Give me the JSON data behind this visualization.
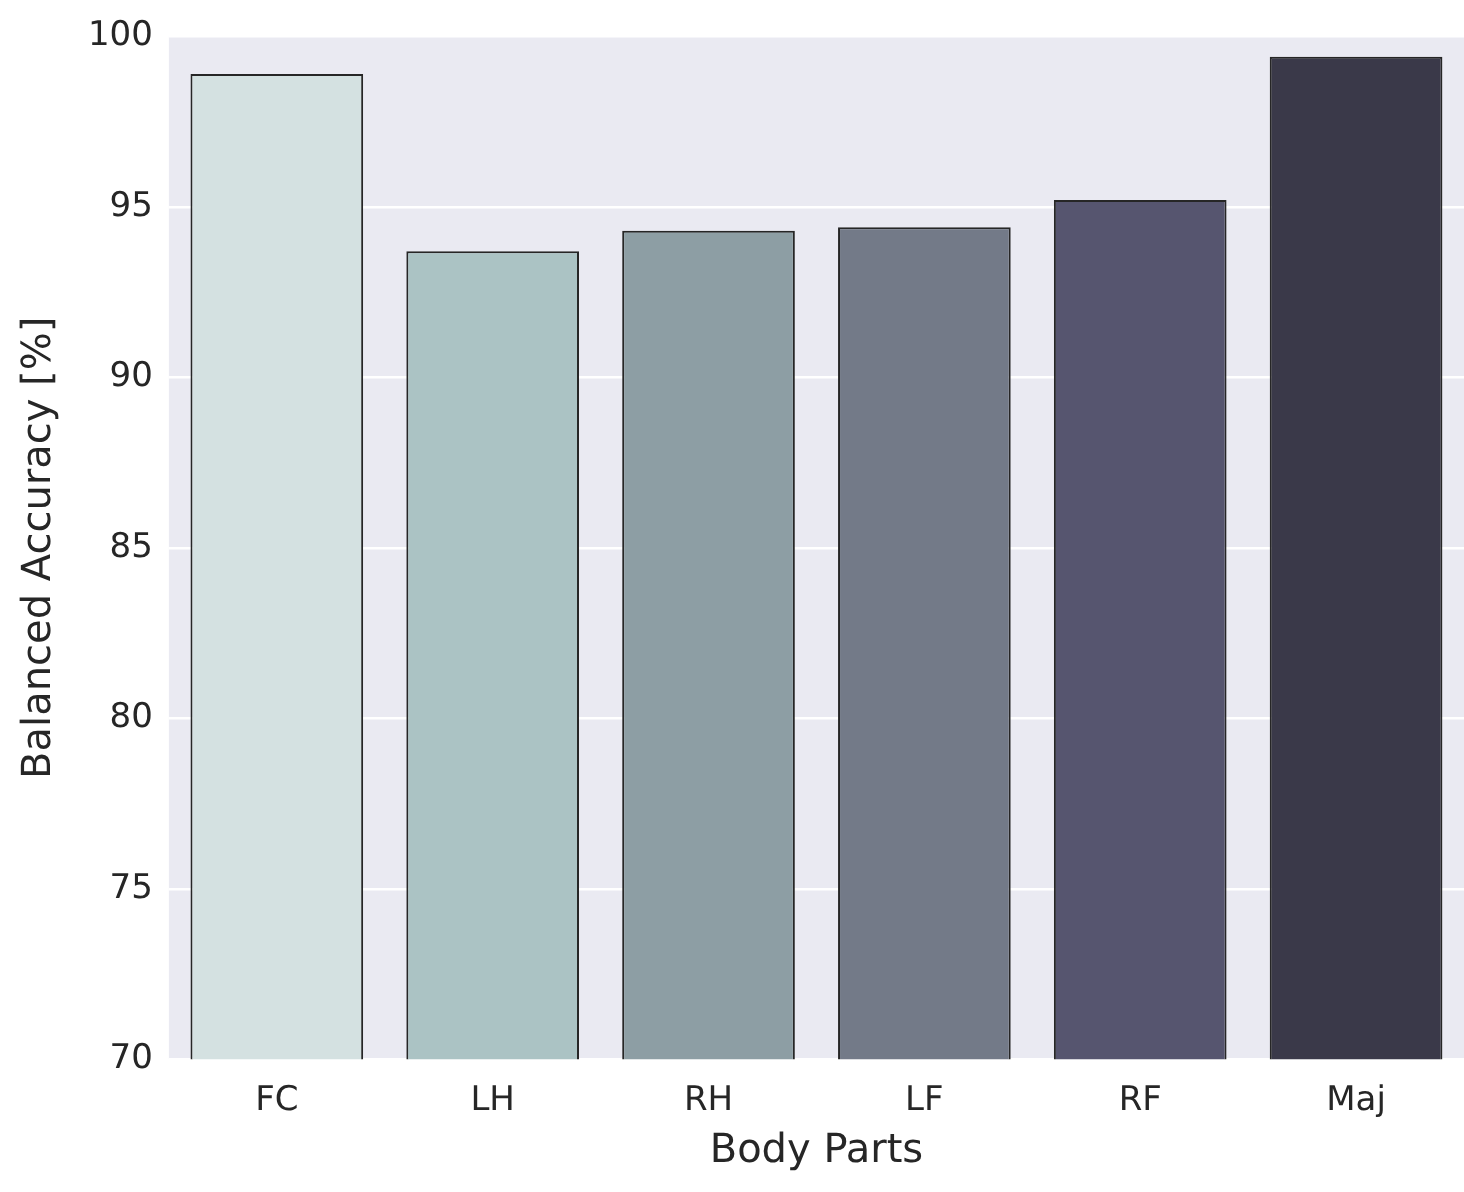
{
  "chart_data": {
    "type": "bar",
    "xlabel": "Body Parts",
    "ylabel": "Balanced Accuracy [%]",
    "categories": [
      "FC",
      "LH",
      "RH",
      "LF",
      "RF",
      "Maj"
    ],
    "values": [
      98.9,
      93.7,
      94.3,
      94.4,
      95.2,
      99.4
    ],
    "colors": [
      "#d4e1e1",
      "#abc3c4",
      "#8d9ea4",
      "#737a88",
      "#56556f",
      "#3a3949"
    ],
    "ylim": [
      70,
      100
    ],
    "yticks": [
      70,
      75,
      80,
      85,
      90,
      95,
      100
    ],
    "grid": "y",
    "legend": false
  }
}
